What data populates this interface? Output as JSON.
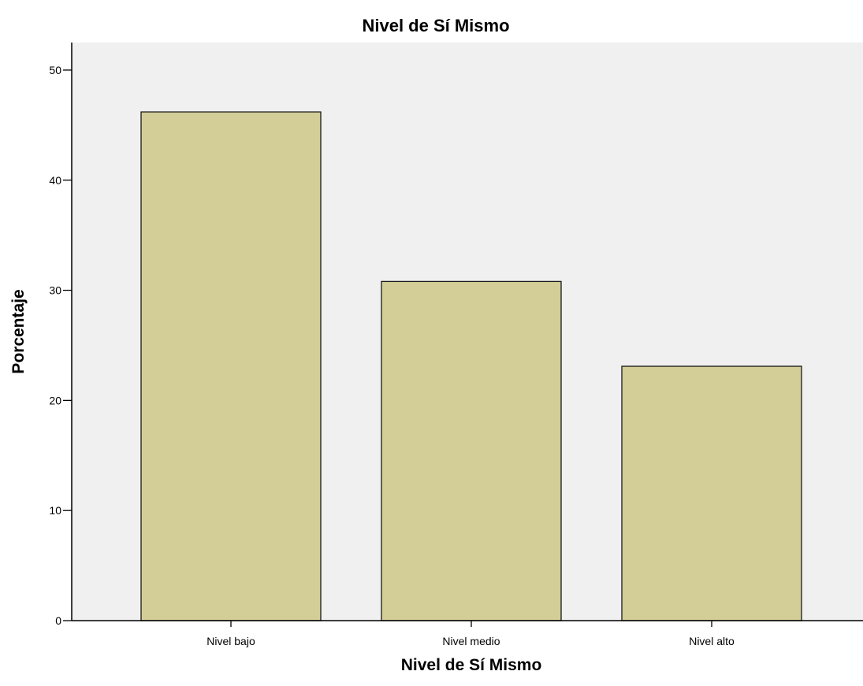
{
  "chart_data": {
    "type": "bar",
    "title": "Nivel de Sí Mismo",
    "xlabel": "Nivel de Sí Mismo",
    "ylabel": "Porcentaje",
    "categories": [
      "Nivel bajo",
      "Nivel medio",
      "Nivel alto"
    ],
    "values": [
      46.2,
      30.8,
      23.1
    ],
    "ylim": [
      0,
      52.5
    ],
    "yticks": [
      0,
      10,
      20,
      30,
      40,
      50
    ],
    "grid": false,
    "legend": "none",
    "colors": {
      "bar_fill": "#d3ce97",
      "bar_stroke": "#1a1a1a",
      "plot_background": "#f0f0f0",
      "axis": "#000000"
    }
  }
}
